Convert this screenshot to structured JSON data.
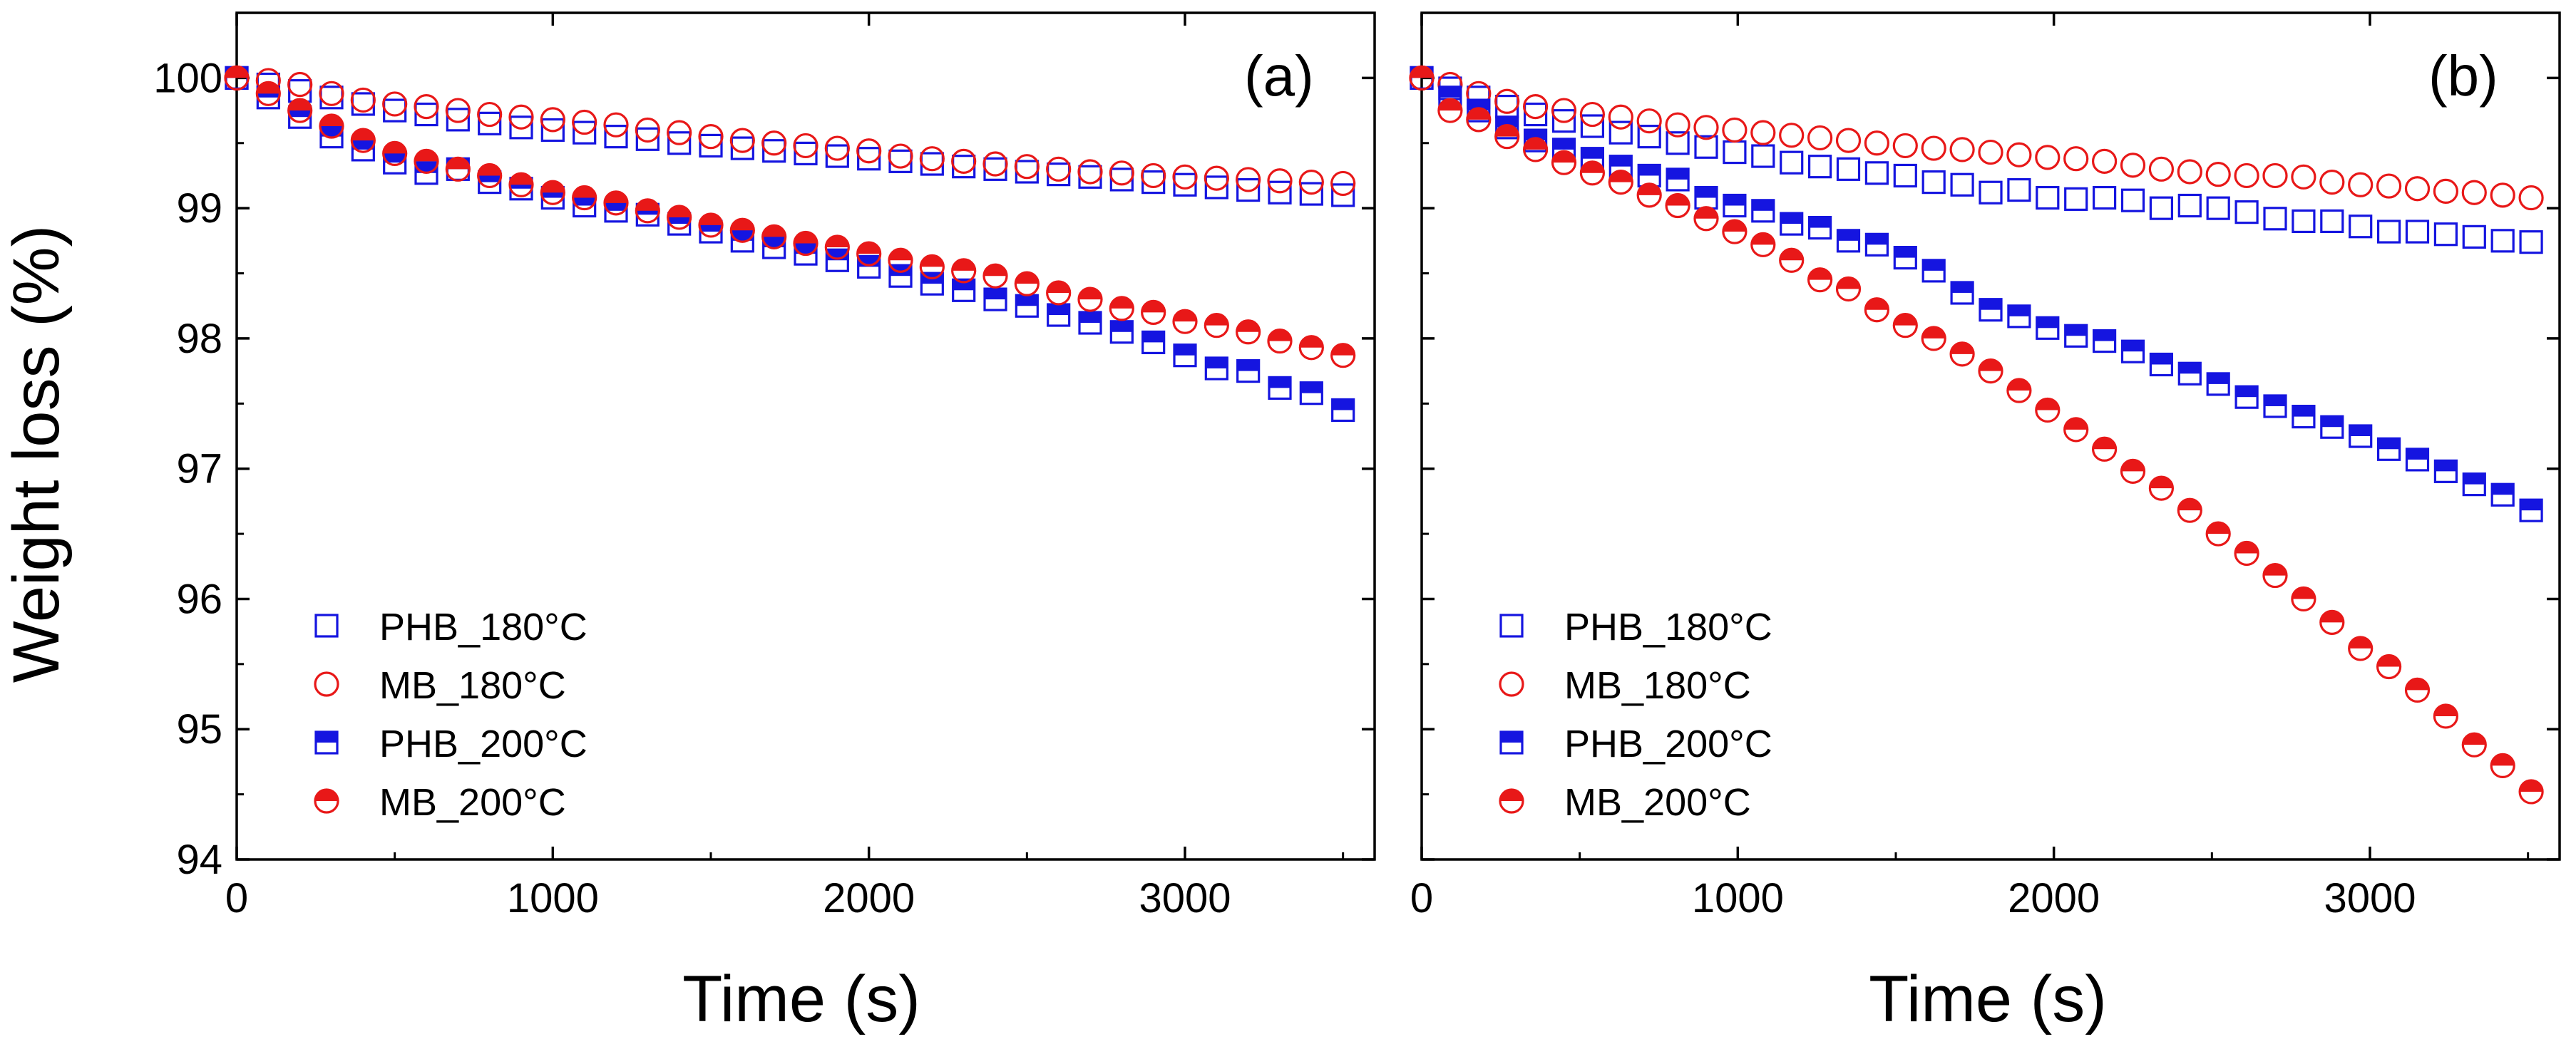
{
  "figure": {
    "ylabel": "Weight loss (%)",
    "xlabel": "Time (s)"
  },
  "colors": {
    "blue": "#1515e0",
    "red": "#e81818",
    "axis": "#000000"
  },
  "legend": {
    "entries": [
      {
        "label": "PHB_180°C",
        "series": "PHB_180",
        "marker": "open-square",
        "color": "#1515e0"
      },
      {
        "label": "MB_180°C",
        "series": "MB_180",
        "marker": "open-circle",
        "color": "#e81818"
      },
      {
        "label": "PHB_200°C",
        "series": "PHB_200",
        "marker": "half-filled-square",
        "color": "#1515e0"
      },
      {
        "label": "MB_200°C",
        "series": "MB_200",
        "marker": "half-filled-circle",
        "color": "#e81818"
      }
    ]
  },
  "chart_data": [
    {
      "type": "scatter",
      "panel_label": "(a)",
      "title": "",
      "xlabel": "Time (s)",
      "ylabel": "Weight loss (%)",
      "xlim": [
        0,
        3600
      ],
      "ylim": [
        94,
        100.5
      ],
      "xticks": [
        0,
        1000,
        2000,
        3000
      ],
      "yticks": [
        94,
        95,
        96,
        97,
        98,
        99,
        100
      ],
      "legend_position": "bottom-left",
      "series": [
        {
          "name": "PHB_180°C",
          "x": [
            0,
            100,
            200,
            300,
            400,
            500,
            600,
            700,
            800,
            900,
            1000,
            1100,
            1200,
            1300,
            1400,
            1500,
            1600,
            1700,
            1800,
            1900,
            2000,
            2100,
            2200,
            2300,
            2400,
            2500,
            2600,
            2700,
            2800,
            2900,
            3000,
            3100,
            3200,
            3300,
            3400,
            3500
          ],
          "y": [
            100.0,
            99.95,
            99.9,
            99.85,
            99.8,
            99.75,
            99.72,
            99.68,
            99.65,
            99.62,
            99.6,
            99.58,
            99.55,
            99.53,
            99.5,
            99.48,
            99.46,
            99.44,
            99.42,
            99.4,
            99.38,
            99.36,
            99.34,
            99.32,
            99.3,
            99.28,
            99.26,
            99.24,
            99.22,
            99.2,
            99.18,
            99.16,
            99.14,
            99.12,
            99.11,
            99.1
          ]
        },
        {
          "name": "MB_180°C",
          "x": [
            0,
            100,
            200,
            300,
            400,
            500,
            600,
            700,
            800,
            900,
            1000,
            1100,
            1200,
            1300,
            1400,
            1500,
            1600,
            1700,
            1800,
            1900,
            2000,
            2100,
            2200,
            2300,
            2400,
            2500,
            2600,
            2700,
            2800,
            2900,
            3000,
            3100,
            3200,
            3300,
            3400,
            3500
          ],
          "y": [
            100.0,
            99.98,
            99.95,
            99.88,
            99.83,
            99.8,
            99.78,
            99.75,
            99.72,
            99.7,
            99.68,
            99.66,
            99.64,
            99.6,
            99.58,
            99.55,
            99.52,
            99.5,
            99.48,
            99.46,
            99.44,
            99.4,
            99.38,
            99.36,
            99.34,
            99.32,
            99.3,
            99.28,
            99.27,
            99.25,
            99.24,
            99.23,
            99.22,
            99.21,
            99.2,
            99.19
          ]
        },
        {
          "name": "PHB_200°C",
          "x": [
            0,
            100,
            200,
            300,
            400,
            500,
            600,
            700,
            800,
            900,
            1000,
            1100,
            1200,
            1300,
            1400,
            1500,
            1600,
            1700,
            1800,
            1900,
            2000,
            2100,
            2200,
            2300,
            2400,
            2500,
            2600,
            2700,
            2800,
            2900,
            3000,
            3100,
            3200,
            3300,
            3400,
            3500
          ],
          "y": [
            100.0,
            99.85,
            99.7,
            99.55,
            99.45,
            99.35,
            99.27,
            99.3,
            99.2,
            99.15,
            99.08,
            99.02,
            98.98,
            98.95,
            98.88,
            98.82,
            98.75,
            98.7,
            98.65,
            98.6,
            98.55,
            98.48,
            98.42,
            98.37,
            98.3,
            98.25,
            98.18,
            98.12,
            98.05,
            97.97,
            97.87,
            97.77,
            97.75,
            97.62,
            97.58,
            97.45
          ]
        },
        {
          "name": "MB_200°C",
          "x": [
            0,
            100,
            200,
            300,
            400,
            500,
            600,
            700,
            800,
            900,
            1000,
            1100,
            1200,
            1300,
            1400,
            1500,
            1600,
            1700,
            1800,
            1900,
            2000,
            2100,
            2200,
            2300,
            2400,
            2500,
            2600,
            2700,
            2800,
            2900,
            3000,
            3100,
            3200,
            3300,
            3400,
            3500
          ],
          "y": [
            100.0,
            99.88,
            99.75,
            99.63,
            99.52,
            99.42,
            99.36,
            99.3,
            99.25,
            99.18,
            99.12,
            99.08,
            99.04,
            98.98,
            98.93,
            98.87,
            98.83,
            98.78,
            98.73,
            98.7,
            98.65,
            98.6,
            98.55,
            98.52,
            98.48,
            98.42,
            98.35,
            98.3,
            98.23,
            98.2,
            98.13,
            98.1,
            98.05,
            97.98,
            97.93,
            97.87
          ]
        }
      ]
    },
    {
      "type": "scatter",
      "panel_label": "(b)",
      "title": "",
      "xlabel": "Time (s)",
      "ylabel": "",
      "xlim": [
        0,
        3600
      ],
      "ylim": [
        94,
        100.5
      ],
      "xticks": [
        0,
        1000,
        2000,
        3000
      ],
      "yticks": [
        94,
        95,
        96,
        97,
        98,
        99,
        100
      ],
      "legend_position": "bottom-left",
      "series": [
        {
          "name": "PHB_180°C",
          "x": [
            0,
            90,
            180,
            270,
            360,
            450,
            540,
            630,
            720,
            810,
            900,
            990,
            1080,
            1170,
            1260,
            1350,
            1440,
            1530,
            1620,
            1710,
            1800,
            1890,
            1980,
            2070,
            2160,
            2250,
            2340,
            2430,
            2520,
            2610,
            2700,
            2790,
            2880,
            2970,
            3060,
            3150,
            3240,
            3330,
            3420,
            3510
          ],
          "y": [
            100.0,
            99.92,
            99.85,
            99.78,
            99.72,
            99.67,
            99.63,
            99.58,
            99.55,
            99.5,
            99.47,
            99.43,
            99.4,
            99.35,
            99.32,
            99.3,
            99.27,
            99.25,
            99.2,
            99.18,
            99.12,
            99.14,
            99.08,
            99.07,
            99.08,
            99.06,
            99.0,
            99.02,
            99.0,
            98.97,
            98.92,
            98.9,
            98.9,
            98.86,
            98.82,
            98.82,
            98.8,
            98.78,
            98.75,
            98.74
          ]
        },
        {
          "name": "MB_180°C",
          "x": [
            0,
            90,
            180,
            270,
            360,
            450,
            540,
            630,
            720,
            810,
            900,
            990,
            1080,
            1170,
            1260,
            1350,
            1440,
            1530,
            1620,
            1710,
            1800,
            1890,
            1980,
            2070,
            2160,
            2250,
            2340,
            2430,
            2520,
            2610,
            2700,
            2790,
            2880,
            2970,
            3060,
            3150,
            3240,
            3330,
            3420,
            3510
          ],
          "y": [
            100.0,
            99.95,
            99.88,
            99.82,
            99.78,
            99.75,
            99.72,
            99.7,
            99.67,
            99.64,
            99.62,
            99.6,
            99.58,
            99.56,
            99.54,
            99.52,
            99.5,
            99.48,
            99.46,
            99.45,
            99.43,
            99.41,
            99.39,
            99.38,
            99.36,
            99.33,
            99.3,
            99.28,
            99.26,
            99.25,
            99.25,
            99.24,
            99.2,
            99.18,
            99.17,
            99.15,
            99.13,
            99.12,
            99.1,
            99.08
          ]
        },
        {
          "name": "PHB_200°C",
          "x": [
            0,
            90,
            180,
            270,
            360,
            450,
            540,
            630,
            720,
            810,
            900,
            990,
            1080,
            1170,
            1260,
            1350,
            1440,
            1530,
            1620,
            1710,
            1800,
            1890,
            1980,
            2070,
            2160,
            2250,
            2340,
            2430,
            2520,
            2610,
            2700,
            2790,
            2880,
            2970,
            3060,
            3150,
            3240,
            3330,
            3420,
            3510
          ],
          "y": [
            100.0,
            99.85,
            99.75,
            99.62,
            99.52,
            99.45,
            99.38,
            99.32,
            99.25,
            99.22,
            99.08,
            99.02,
            98.98,
            98.88,
            98.85,
            98.75,
            98.72,
            98.62,
            98.52,
            98.35,
            98.22,
            98.17,
            98.08,
            98.02,
            97.98,
            97.9,
            97.8,
            97.73,
            97.65,
            97.55,
            97.48,
            97.4,
            97.32,
            97.25,
            97.15,
            97.07,
            96.98,
            96.88,
            96.8,
            96.68
          ]
        },
        {
          "name": "MB_200°C",
          "x": [
            0,
            90,
            180,
            270,
            360,
            450,
            540,
            630,
            720,
            810,
            900,
            990,
            1080,
            1170,
            1260,
            1350,
            1440,
            1530,
            1620,
            1710,
            1800,
            1890,
            1980,
            2070,
            2160,
            2250,
            2340,
            2430,
            2520,
            2610,
            2700,
            2790,
            2880,
            2970,
            3060,
            3150,
            3240,
            3330,
            3420,
            3510
          ],
          "y": [
            100.0,
            99.75,
            99.68,
            99.55,
            99.45,
            99.35,
            99.27,
            99.2,
            99.1,
            99.02,
            98.92,
            98.82,
            98.72,
            98.6,
            98.45,
            98.38,
            98.22,
            98.1,
            98.0,
            97.88,
            97.75,
            97.6,
            97.45,
            97.3,
            97.15,
            96.98,
            96.85,
            96.68,
            96.5,
            96.35,
            96.18,
            96.0,
            95.82,
            95.62,
            95.48,
            95.3,
            95.1,
            94.88,
            94.72,
            94.52
          ]
        }
      ]
    }
  ]
}
